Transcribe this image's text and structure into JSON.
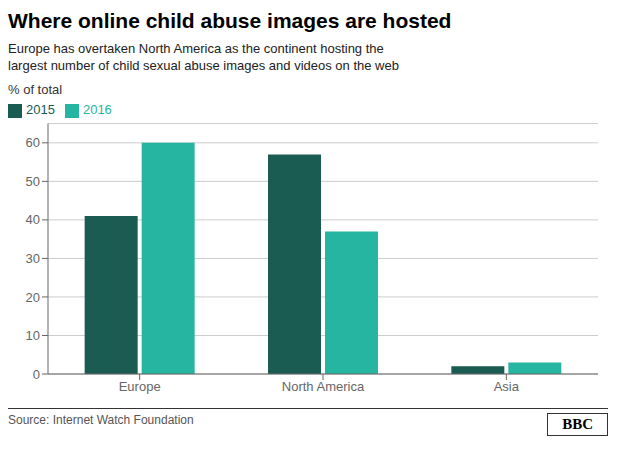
{
  "chart_data": {
    "type": "bar",
    "title": "Where online child abuse images are hosted",
    "subtitle": "Europe has overtaken North America as the continent hosting the\nlargest number of child sexual abuse images and videos on the web",
    "ylabel": "% of total",
    "categories": [
      "Europe",
      "North America",
      "Asia"
    ],
    "series": [
      {
        "name": "2015",
        "color": "#1a5c52",
        "values": [
          41,
          57,
          2
        ]
      },
      {
        "name": "2016",
        "color": "#26b5a0",
        "values": [
          60,
          37,
          3
        ]
      }
    ],
    "ylim": [
      0,
      65
    ],
    "yticks": [
      0,
      10,
      20,
      30,
      40,
      50,
      60
    ],
    "grid": true,
    "legend": "upper left",
    "annotations": [
      "Source: Internet Watch Foundation",
      "BBC"
    ]
  }
}
